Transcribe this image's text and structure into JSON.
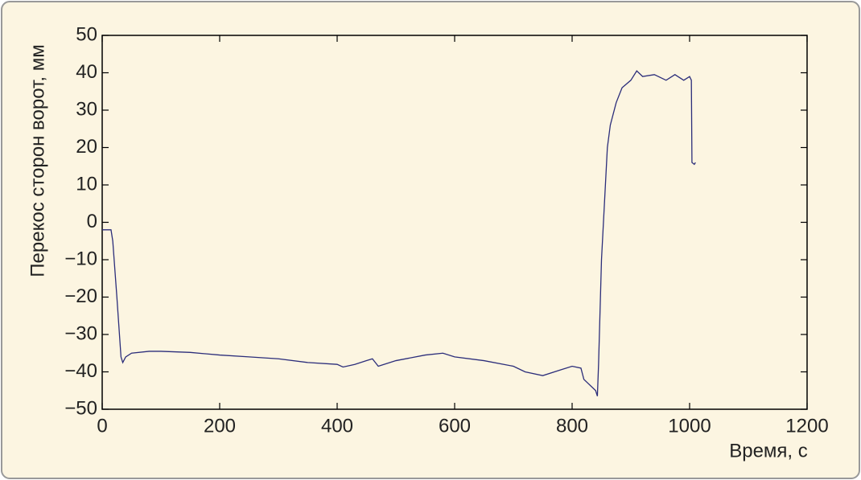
{
  "chart_data": {
    "type": "line",
    "xlabel": "Время, с",
    "ylabel": "Перекос сторон ворот, мм",
    "xlim": [
      0,
      1200
    ],
    "ylim": [
      -50,
      50
    ],
    "xticks": [
      0,
      200,
      400,
      600,
      800,
      1000,
      1200
    ],
    "yticks": [
      50,
      40,
      30,
      20,
      10,
      0,
      {
        "value": -10,
        "label": "−10"
      },
      {
        "value": -20,
        "label": "−20"
      },
      {
        "value": -30,
        "label": "−30"
      },
      {
        "value": -40,
        "label": "−40"
      },
      {
        "value": -50,
        "label": "−50"
      }
    ],
    "grid": false,
    "series": [
      {
        "color": "#2b2d7a",
        "x": [
          0,
          15,
          18,
          25,
          32,
          35,
          40,
          50,
          80,
          100,
          150,
          200,
          250,
          300,
          350,
          400,
          410,
          430,
          450,
          460,
          470,
          500,
          550,
          580,
          600,
          650,
          700,
          720,
          750,
          780,
          800,
          815,
          820,
          840,
          843,
          845,
          850,
          855,
          860,
          865,
          875,
          885,
          900,
          910,
          920,
          940,
          960,
          975,
          990,
          1000,
          1003,
          1004,
          1008,
          1010
        ],
        "values": [
          -2,
          -2,
          -5,
          -20,
          -36,
          -37.5,
          -36,
          -35,
          -34.5,
          -34.5,
          -34.8,
          -35.5,
          -36,
          -36.5,
          -37.5,
          -38,
          -38.7,
          -38,
          -37,
          -36.5,
          -38.5,
          -37,
          -35.5,
          -35,
          -36,
          -37,
          -38.5,
          -40,
          -41,
          -39.5,
          -38.5,
          -39,
          -42,
          -45,
          -46.5,
          -38,
          -10,
          5,
          20,
          26,
          32,
          36,
          38,
          40.5,
          39,
          39.5,
          38,
          39.5,
          38,
          39,
          38,
          16,
          15.5,
          16
        ]
      }
    ]
  }
}
